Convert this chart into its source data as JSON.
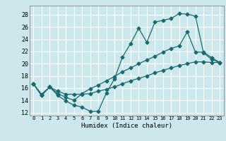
{
  "xlabel": "Humidex (Indice chaleur)",
  "ylabel": "",
  "bg_color": "#cce8ec",
  "grid_color": "#ffffff",
  "line_color": "#1a6b6b",
  "marker": "D",
  "marker_size": 2.5,
  "xlim": [
    -0.5,
    23.5
  ],
  "ylim": [
    11.5,
    29.5
  ],
  "xticks": [
    0,
    1,
    2,
    3,
    4,
    5,
    6,
    7,
    8,
    9,
    10,
    11,
    12,
    13,
    14,
    15,
    16,
    17,
    18,
    19,
    20,
    21,
    22,
    23
  ],
  "yticks": [
    12,
    14,
    16,
    18,
    20,
    22,
    24,
    26,
    28
  ],
  "line1_x": [
    0,
    1,
    2,
    3,
    4,
    5,
    6,
    7,
    8,
    9,
    10,
    11,
    12,
    13,
    14,
    15,
    16,
    17,
    18,
    19,
    20,
    21,
    22,
    23
  ],
  "line1_y": [
    16.7,
    14.8,
    16.2,
    14.8,
    13.9,
    13.2,
    12.9,
    12.2,
    12.2,
    15.2,
    17.5,
    21.1,
    23.3,
    25.8,
    23.5,
    26.8,
    27.1,
    27.4,
    28.2,
    28.1,
    27.8,
    21.8,
    20.7,
    20.2
  ],
  "line2_x": [
    0,
    1,
    2,
    3,
    4,
    5,
    6,
    7,
    8,
    9,
    10,
    11,
    12,
    13,
    14,
    15,
    16,
    17,
    18,
    19,
    20,
    21,
    22,
    23
  ],
  "line2_y": [
    16.7,
    14.8,
    16.2,
    15.1,
    14.5,
    14.0,
    15.1,
    15.9,
    16.5,
    17.2,
    17.9,
    18.7,
    19.3,
    20.0,
    20.6,
    21.2,
    21.9,
    22.5,
    22.9,
    25.2,
    21.9,
    21.9,
    21.0,
    20.2
  ],
  "line3_x": [
    0,
    1,
    2,
    3,
    4,
    5,
    6,
    7,
    8,
    9,
    10,
    11,
    12,
    13,
    14,
    15,
    16,
    17,
    18,
    19,
    20,
    21,
    22,
    23
  ],
  "line3_y": [
    16.7,
    15.0,
    16.2,
    15.5,
    15.0,
    15.0,
    15.0,
    15.1,
    15.5,
    15.8,
    16.2,
    16.7,
    17.2,
    17.6,
    18.0,
    18.5,
    18.9,
    19.3,
    19.7,
    20.0,
    20.3,
    20.3,
    20.2,
    20.2
  ]
}
